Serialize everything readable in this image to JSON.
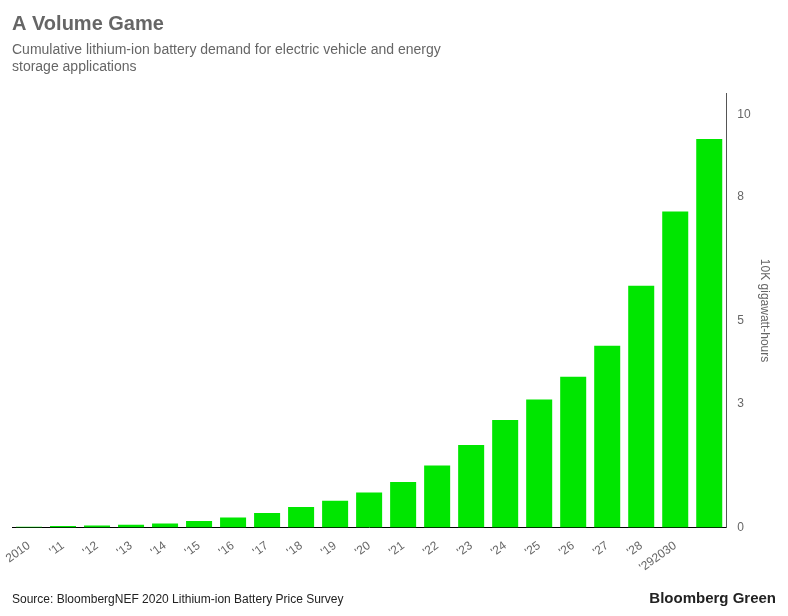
{
  "chart_data": {
    "type": "bar",
    "title": "A Volume Game",
    "subtitle": [
      "Cumulative lithium-ion battery demand for electric vehicle and energy",
      "storage applications"
    ],
    "ylabel": "10K gigawatt-hours",
    "categories": [
      "2010",
      "'11",
      "'12",
      "'13",
      "'14",
      "'15",
      "'16",
      "'17",
      "'18",
      "'19",
      "'20",
      "'21",
      "'22",
      "'23",
      "'24",
      "'25",
      "'26",
      "'27",
      "'28",
      "'292030",
      null
    ],
    "values": [
      0.02,
      0.04,
      0.05,
      0.07,
      0.1,
      0.16,
      0.24,
      0.35,
      0.5,
      0.65,
      0.85,
      1.1,
      1.5,
      2.0,
      2.6,
      3.1,
      3.65,
      4.4,
      5.85,
      7.65,
      9.4
    ],
    "color": "#00e600",
    "ylim": [
      0,
      10.5
    ],
    "yticks": [
      0,
      3,
      5,
      8,
      10
    ],
    "grid": false,
    "annotations": [
      "Source: BloombergNEF 2020 Lithium-ion Battery Price Survey",
      "Bloomberg Green"
    ]
  }
}
